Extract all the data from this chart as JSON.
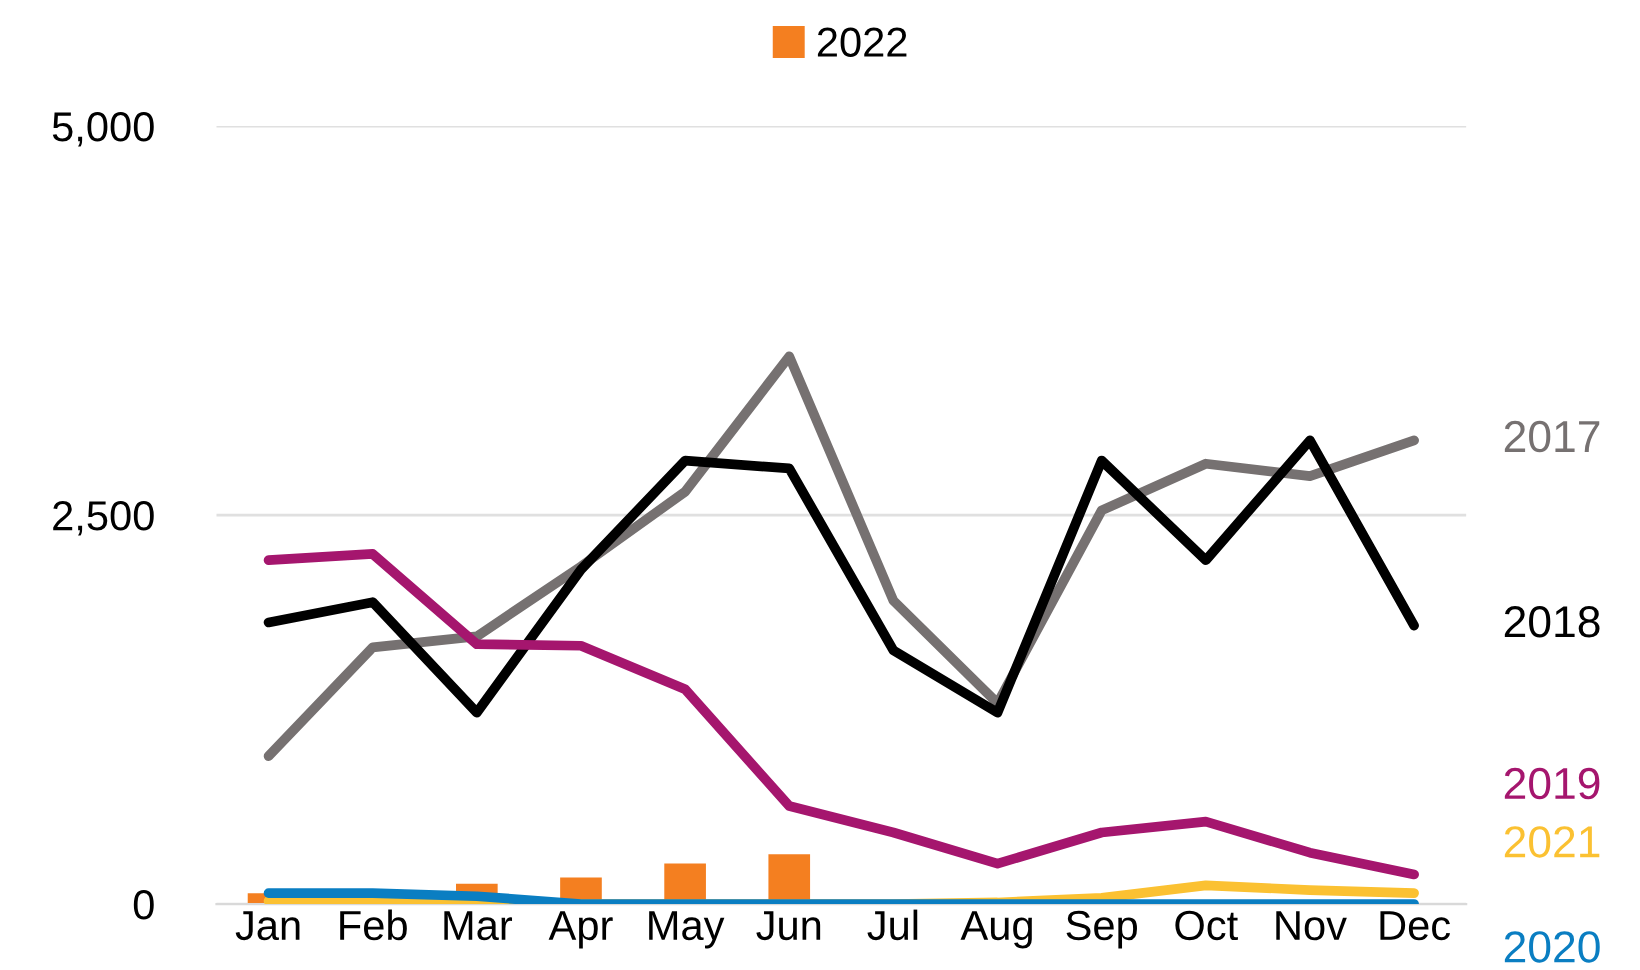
{
  "chart_data": {
    "type": "line",
    "categories": [
      "Jan",
      "Feb",
      "Mar",
      "Apr",
      "May",
      "Jun",
      "Jul",
      "Aug",
      "Sep",
      "Oct",
      "Nov",
      "Dec"
    ],
    "series": [
      {
        "name": "2022",
        "type": "bar",
        "color": "#f47f20",
        "values": [
          70,
          null,
          130,
          170,
          260,
          320,
          null,
          null,
          null,
          null,
          null,
          null
        ]
      },
      {
        "name": "2017",
        "color": "#767171",
        "values": [
          950,
          1650,
          1720,
          2170,
          2650,
          3520,
          1950,
          1290,
          2530,
          2830,
          2750,
          2980
        ]
      },
      {
        "name": "2018",
        "color": "#000000",
        "values": [
          1810,
          1940,
          1230,
          2150,
          2850,
          2800,
          1630,
          1230,
          2850,
          2210,
          2980,
          1790
        ]
      },
      {
        "name": "2019",
        "color": "#a5166e",
        "values": [
          2210,
          2250,
          1670,
          1660,
          1380,
          630,
          460,
          260,
          460,
          530,
          330,
          190
        ]
      },
      {
        "name": "2021",
        "color": "#fbc132",
        "values": [
          20,
          10,
          0,
          0,
          0,
          0,
          0,
          10,
          40,
          120,
          90,
          70
        ]
      },
      {
        "name": "2020",
        "color": "#0a7ec2",
        "values": [
          70,
          70,
          50,
          0,
          0,
          0,
          0,
          0,
          0,
          0,
          0,
          0
        ]
      }
    ],
    "ylim": [
      0,
      5000
    ],
    "yticks": [
      0,
      {
        "value": 2500,
        "label": "2,500"
      },
      {
        "value": 5000,
        "label": "5,000"
      }
    ],
    "grid": "y",
    "legend": "top"
  }
}
